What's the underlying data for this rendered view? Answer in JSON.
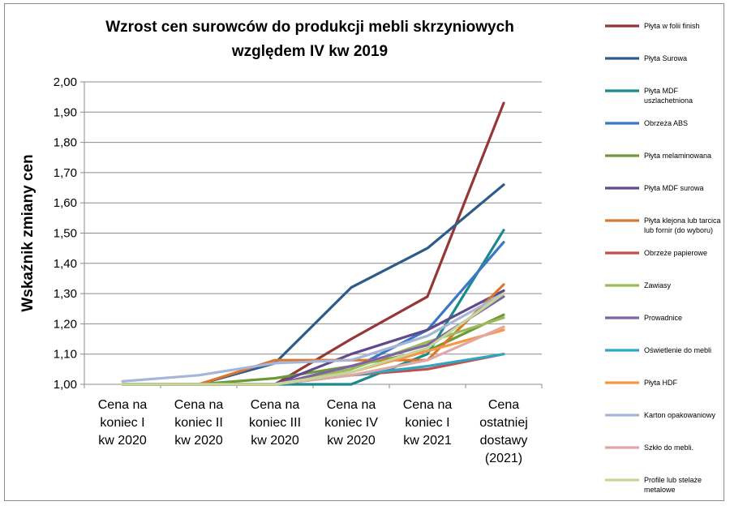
{
  "chart_data": {
    "type": "line",
    "title": [
      "Wzrost cen surowców do produkcji mebli skrzyniowych",
      "względem IV kw 2019"
    ],
    "ylabel": "Wskaźnik zmiany cen",
    "xlabel": "",
    "ylim": [
      1.0,
      2.0
    ],
    "yticks": [
      "1,00",
      "1,10",
      "1,20",
      "1,30",
      "1,40",
      "1,50",
      "1,60",
      "1,70",
      "1,80",
      "1,90",
      "2,00"
    ],
    "ytick_values": [
      1.0,
      1.1,
      1.2,
      1.3,
      1.4,
      1.5,
      1.6,
      1.7,
      1.8,
      1.9,
      2.0
    ],
    "categories": [
      [
        "Cena na",
        "koniec I",
        "kw 2020"
      ],
      [
        "Cena na",
        "koniec II",
        "kw 2020"
      ],
      [
        "Cena na",
        "koniec III",
        "kw 2020"
      ],
      [
        "Cena na",
        "koniec IV",
        "kw 2020"
      ],
      [
        "Cena na",
        "koniec I",
        "kw 2021"
      ],
      [
        "Cena",
        "ostatniej",
        "dostawy",
        "(2021)"
      ]
    ],
    "grid": true,
    "legend_position": "right",
    "series": [
      {
        "name": [
          "Płyta w folii finish"
        ],
        "color": "#953735",
        "values": [
          1.0,
          1.0,
          1.0,
          1.15,
          1.29,
          1.93
        ]
      },
      {
        "name": [
          "Płyta Surowa"
        ],
        "color": "#2e5c8a",
        "values": [
          1.0,
          1.0,
          1.07,
          1.32,
          1.45,
          1.66
        ]
      },
      {
        "name": [
          "Płyta MDF",
          "uszlachetniona"
        ],
        "color": "#1a8a8a",
        "values": [
          1.0,
          1.0,
          1.0,
          1.0,
          1.1,
          1.51
        ]
      },
      {
        "name": [
          "Obrzeża ABS"
        ],
        "color": "#3a78c3",
        "values": [
          1.0,
          1.0,
          1.0,
          1.05,
          1.18,
          1.47
        ]
      },
      {
        "name": [
          "Płyta melaminowana"
        ],
        "color": "#6b9a3a",
        "values": [
          1.0,
          1.0,
          1.02,
          1.06,
          1.11,
          1.23
        ]
      },
      {
        "name": [
          "Płyta MDF surowa"
        ],
        "color": "#5f4a8b",
        "values": [
          1.0,
          1.0,
          1.0,
          1.1,
          1.18,
          1.31
        ]
      },
      {
        "name": [
          "Płyta klejona lub tarcica",
          "lub fornir (do wyboru)"
        ],
        "color": "#d9782d",
        "values": [
          1.0,
          1.0,
          1.08,
          1.08,
          1.08,
          1.33
        ]
      },
      {
        "name": [
          "Obrzeże papierowe"
        ],
        "color": "#c0504d",
        "values": [
          1.0,
          1.0,
          1.0,
          1.03,
          1.05,
          1.1
        ]
      },
      {
        "name": [
          "Zawiasy"
        ],
        "color": "#9bbb59",
        "values": [
          1.0,
          1.0,
          1.0,
          1.05,
          1.14,
          1.22
        ]
      },
      {
        "name": [
          "Prowadnice"
        ],
        "color": "#8064a2",
        "values": [
          1.0,
          1.0,
          1.0,
          1.06,
          1.13,
          1.29
        ]
      },
      {
        "name": [
          "Oświetlenie do mebli"
        ],
        "color": "#31a6c4",
        "values": [
          1.0,
          1.0,
          1.0,
          1.03,
          1.06,
          1.1
        ]
      },
      {
        "name": [
          "Płyta HDF"
        ],
        "color": "#f79646",
        "values": [
          1.0,
          1.0,
          1.0,
          1.04,
          1.11,
          1.18
        ]
      },
      {
        "name": [
          "Karton opakowaniowy"
        ],
        "color": "#a5b6d8",
        "values": [
          1.01,
          1.03,
          1.07,
          1.08,
          1.16,
          1.3
        ]
      },
      {
        "name": [
          "Szkło do mebli."
        ],
        "color": "#e0a8a5",
        "values": [
          1.0,
          1.0,
          1.0,
          1.03,
          1.08,
          1.19
        ]
      },
      {
        "name": [
          "Profile lub stelaże",
          "metalowe"
        ],
        "color": "#c4d79b",
        "values": [
          1.0,
          1.0,
          1.0,
          1.04,
          1.12,
          1.3
        ]
      }
    ]
  }
}
